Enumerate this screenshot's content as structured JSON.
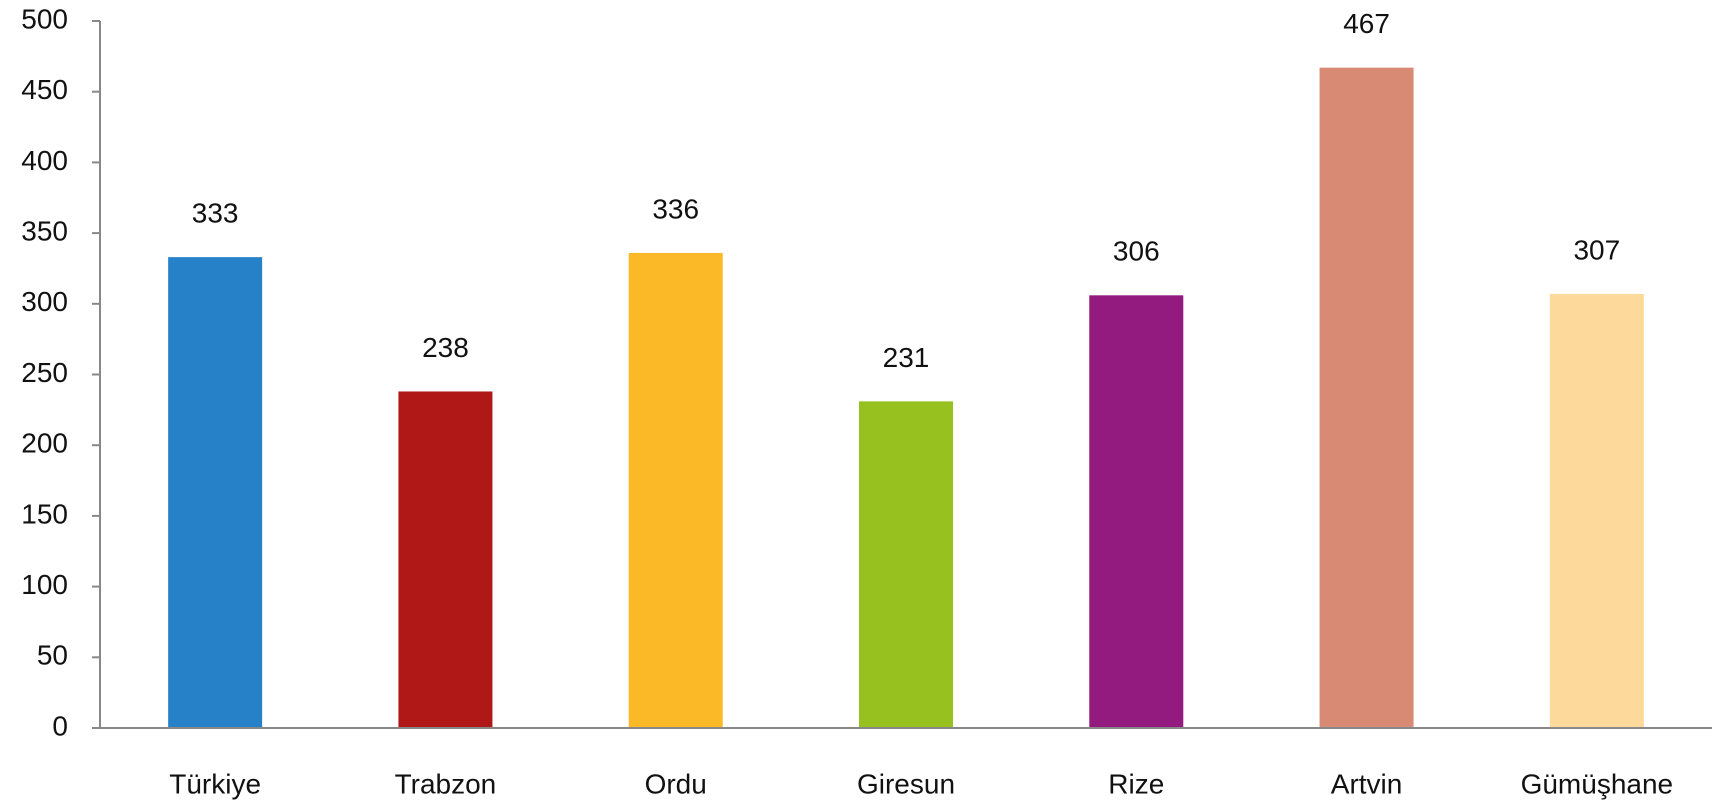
{
  "chart_data": {
    "type": "bar",
    "categories": [
      "Türkiye",
      "Trabzon",
      "Ordu",
      "Giresun",
      "Rize",
      "Artvin",
      "Gümüşhane"
    ],
    "values": [
      333,
      238,
      336,
      231,
      306,
      467,
      307
    ],
    "colors": [
      "#2681c8",
      "#b01818",
      "#fbb927",
      "#96c11f",
      "#931a7f",
      "#d98a75",
      "#fdd99b"
    ],
    "ylim": [
      0,
      500
    ],
    "yticks": [
      0,
      50,
      100,
      150,
      200,
      250,
      300,
      350,
      400,
      450,
      500
    ],
    "grid": false
  }
}
